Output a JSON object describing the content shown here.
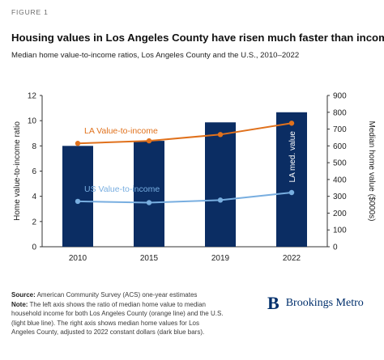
{
  "figure_label": "FIGURE 1",
  "brand": {
    "mark": "B",
    "name": "Brookings Metro"
  },
  "footnote": {
    "source_label": "Source:",
    "source_text": "American Community Survey (ACS) one-year estimates",
    "note_label": "Note:",
    "note_text": "The left axis shows the ratio of median home value to median household income for both Los Angeles County (orange line) and the U.S. (light blue line). The right axis shows median home values for Los Angeles County, adjusted to 2022 constant dollars (dark blue bars)."
  },
  "colors": {
    "bar": "#0b2d63",
    "la_line": "#e0711c",
    "us_line": "#78aee0",
    "axis": "#333333"
  },
  "chart_data": {
    "type": "bar",
    "title": "Housing values in Los Angeles County have risen much faster than incomes",
    "subtitle": "Median home value-to-income ratios, Los Angeles County and the U.S., 2010–2022",
    "categories": [
      "2010",
      "2015",
      "2019",
      "2022"
    ],
    "ylabel_left": "Home value-to-income ratio",
    "ylabel_right": "Median home value ($000s)",
    "ylim_left": [
      0,
      12
    ],
    "yticks_left": [
      0,
      2,
      4,
      6,
      8,
      10,
      12
    ],
    "ylim_right": [
      0,
      900
    ],
    "yticks_right": [
      0,
      100,
      200,
      300,
      400,
      500,
      600,
      700,
      800,
      900
    ],
    "grid": false,
    "series": [
      {
        "name": "LA med. value",
        "kind": "bar",
        "axis": "right",
        "values": [
          600,
          630,
          740,
          800
        ]
      },
      {
        "name": "LA Value-to-income",
        "kind": "line",
        "axis": "left",
        "values": [
          8.2,
          8.4,
          8.9,
          9.8
        ]
      },
      {
        "name": "US Value-to-income",
        "kind": "line",
        "axis": "left",
        "values": [
          3.6,
          3.5,
          3.7,
          4.3
        ]
      }
    ]
  }
}
